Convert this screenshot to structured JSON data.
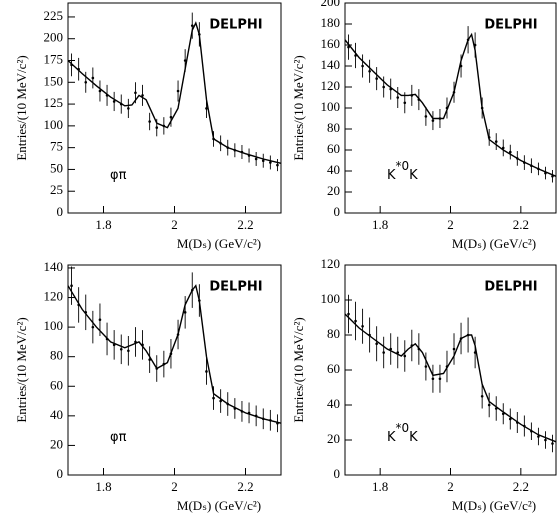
{
  "chart_data": [
    {
      "type": "errorbar",
      "ylabel": "Entries/(10 MeV/c²)",
      "xlabel": "M(Dₛ) (GeV/c²)",
      "experiment": "DELPHI",
      "channel": [
        "φπ"
      ],
      "xlim": [
        1.7,
        2.3
      ],
      "xticks": [
        1.8,
        2,
        2.2
      ],
      "ylim": [
        0,
        241
      ],
      "yticks": [
        0,
        25,
        50,
        75,
        100,
        125,
        150,
        175,
        200,
        225
      ],
      "x": [
        1.71,
        1.73,
        1.75,
        1.77,
        1.79,
        1.81,
        1.83,
        1.85,
        1.87,
        1.89,
        1.91,
        1.93,
        1.95,
        1.97,
        1.99,
        2.01,
        2.03,
        2.05,
        2.07,
        2.09,
        2.11,
        2.13,
        2.15,
        2.17,
        2.19,
        2.21,
        2.23,
        2.25,
        2.27,
        2.29
      ],
      "values": [
        170,
        165,
        150,
        155,
        140,
        135,
        128,
        125,
        120,
        138,
        135,
        105,
        98,
        100,
        110,
        140,
        175,
        215,
        205,
        120,
        85,
        80,
        75,
        72,
        70,
        66,
        62,
        60,
        58,
        55
      ],
      "errors": [
        13,
        13,
        12,
        12,
        12,
        12,
        11,
        11,
        11,
        12,
        12,
        10,
        10,
        10,
        11,
        12,
        13,
        15,
        14,
        11,
        9,
        9,
        9,
        8,
        8,
        8,
        8,
        8,
        8,
        7
      ],
      "fit": {
        "x": [
          1.7,
          1.74,
          1.78,
          1.82,
          1.86,
          1.88,
          1.9,
          1.92,
          1.95,
          1.98,
          2.01,
          2.03,
          2.05,
          2.06,
          2.07,
          2.09,
          2.11,
          2.15,
          2.2,
          2.25,
          2.3
        ],
        "values": [
          175,
          160,
          146,
          133,
          123,
          124,
          135,
          130,
          103,
          98,
          120,
          165,
          210,
          218,
          205,
          130,
          85,
          75,
          68,
          62,
          57
        ]
      },
      "color": "#000000"
    },
    {
      "type": "errorbar",
      "ylabel": "Entries/(10 MeV/c²)",
      "xlabel": "M(Dₛ) (GeV/c²)",
      "experiment": "DELPHI",
      "channel": [
        "K",
        "*0",
        "K"
      ],
      "xlim": [
        1.7,
        2.3
      ],
      "xticks": [
        1.8,
        2,
        2.2
      ],
      "ylim": [
        0,
        200
      ],
      "yticks": [
        0,
        20,
        40,
        60,
        80,
        100,
        120,
        140,
        160,
        180,
        200
      ],
      "x": [
        1.71,
        1.73,
        1.75,
        1.77,
        1.79,
        1.81,
        1.83,
        1.85,
        1.87,
        1.89,
        1.91,
        1.93,
        1.95,
        1.97,
        1.99,
        2.01,
        2.03,
        2.05,
        2.07,
        2.09,
        2.11,
        2.13,
        2.15,
        2.17,
        2.19,
        2.21,
        2.23,
        2.25,
        2.27,
        2.29
      ],
      "values": [
        158,
        150,
        140,
        135,
        128,
        120,
        118,
        110,
        105,
        112,
        108,
        92,
        88,
        90,
        100,
        115,
        140,
        165,
        160,
        100,
        72,
        68,
        62,
        58,
        52,
        48,
        45,
        42,
        38,
        35
      ],
      "errors": [
        12,
        12,
        11,
        11,
        11,
        10,
        10,
        10,
        10,
        10,
        10,
        9,
        9,
        9,
        10,
        10,
        11,
        13,
        12,
        10,
        8,
        8,
        8,
        7,
        7,
        7,
        7,
        6,
        6,
        6
      ],
      "fit": {
        "x": [
          1.7,
          1.74,
          1.78,
          1.82,
          1.86,
          1.88,
          1.9,
          1.92,
          1.95,
          1.98,
          2.01,
          2.03,
          2.05,
          2.06,
          2.07,
          2.09,
          2.11,
          2.15,
          2.2,
          2.25,
          2.3
        ],
        "values": [
          165,
          148,
          135,
          122,
          112,
          112,
          113,
          105,
          90,
          90,
          115,
          145,
          165,
          170,
          155,
          100,
          70,
          60,
          50,
          42,
          35
        ]
      },
      "color": "#000000"
    },
    {
      "type": "errorbar",
      "ylabel": "Entries/(10 MeV/c²)",
      "xlabel": "M(Dₛ) (GeV/c²)",
      "experiment": "DELPHI",
      "channel": [
        "φπ"
      ],
      "xlim": [
        1.7,
        2.3
      ],
      "xticks": [
        1.8,
        2,
        2.2
      ],
      "ylim": [
        0,
        142
      ],
      "yticks": [
        0,
        20,
        40,
        60,
        80,
        100,
        120,
        140
      ],
      "x": [
        1.71,
        1.73,
        1.75,
        1.77,
        1.79,
        1.81,
        1.83,
        1.85,
        1.87,
        1.89,
        1.91,
        1.93,
        1.95,
        1.97,
        1.99,
        2.01,
        2.03,
        2.05,
        2.07,
        2.09,
        2.11,
        2.13,
        2.15,
        2.17,
        2.19,
        2.21,
        2.23,
        2.25,
        2.27,
        2.29
      ],
      "values": [
        128,
        115,
        110,
        100,
        105,
        92,
        88,
        85,
        84,
        90,
        88,
        78,
        72,
        75,
        82,
        95,
        110,
        125,
        118,
        70,
        52,
        50,
        48,
        45,
        43,
        42,
        40,
        38,
        37,
        35
      ],
      "errors": [
        13,
        12,
        12,
        11,
        11,
        11,
        10,
        10,
        10,
        10,
        10,
        9,
        9,
        9,
        10,
        10,
        11,
        12,
        11,
        9,
        8,
        8,
        8,
        7,
        7,
        7,
        7,
        7,
        7,
        6
      ],
      "fit": {
        "x": [
          1.7,
          1.74,
          1.78,
          1.82,
          1.86,
          1.88,
          1.9,
          1.92,
          1.95,
          1.98,
          2.01,
          2.03,
          2.05,
          2.06,
          2.07,
          2.09,
          2.11,
          2.15,
          2.2,
          2.25,
          2.3
        ],
        "values": [
          128,
          112,
          100,
          90,
          86,
          88,
          90,
          84,
          72,
          76,
          95,
          115,
          125,
          128,
          118,
          80,
          55,
          48,
          42,
          38,
          35
        ]
      },
      "color": "#000000"
    },
    {
      "type": "errorbar",
      "ylabel": "Entries/(10 MeV/c²)",
      "xlabel": "M(Dₛ) (GeV/c²)",
      "experiment": "DELPHI",
      "channel": [
        "K",
        "*0",
        "K"
      ],
      "xlim": [
        1.7,
        2.3
      ],
      "xticks": [
        1.8,
        2,
        2.2
      ],
      "ylim": [
        0,
        120
      ],
      "yticks": [
        0,
        20,
        40,
        60,
        80,
        100,
        120
      ],
      "x": [
        1.71,
        1.73,
        1.75,
        1.77,
        1.79,
        1.81,
        1.83,
        1.85,
        1.87,
        1.89,
        1.91,
        1.93,
        1.95,
        1.97,
        1.99,
        2.01,
        2.03,
        2.05,
        2.07,
        2.09,
        2.11,
        2.13,
        2.15,
        2.17,
        2.19,
        2.21,
        2.23,
        2.25,
        2.27,
        2.29
      ],
      "values": [
        92,
        88,
        85,
        80,
        75,
        70,
        72,
        70,
        68,
        74,
        72,
        62,
        55,
        55,
        62,
        72,
        78,
        80,
        70,
        45,
        40,
        38,
        35,
        32,
        30,
        28,
        25,
        22,
        20,
        18
      ],
      "errors": [
        11,
        11,
        10,
        10,
        10,
        9,
        9,
        9,
        9,
        9,
        9,
        8,
        8,
        8,
        9,
        9,
        9,
        10,
        9,
        7,
        7,
        7,
        6,
        6,
        6,
        6,
        5,
        5,
        5,
        5
      ],
      "fit": {
        "x": [
          1.7,
          1.74,
          1.78,
          1.82,
          1.86,
          1.88,
          1.9,
          1.92,
          1.95,
          1.98,
          2.01,
          2.03,
          2.05,
          2.06,
          2.07,
          2.09,
          2.11,
          2.15,
          2.2,
          2.25,
          2.3
        ],
        "values": [
          92,
          84,
          78,
          72,
          68,
          72,
          75,
          70,
          57,
          58,
          68,
          78,
          80,
          80,
          74,
          52,
          42,
          36,
          29,
          23,
          19
        ]
      },
      "color": "#000000"
    }
  ]
}
